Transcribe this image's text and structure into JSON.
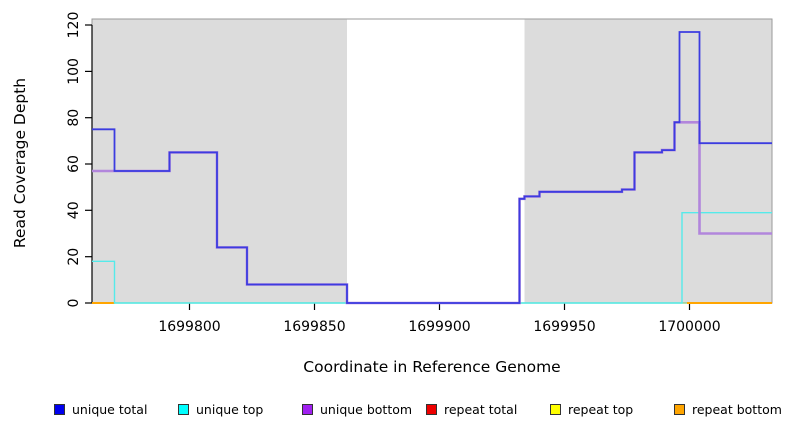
{
  "chart_data": {
    "type": "line",
    "style": "step",
    "title": "",
    "xlabel": "Coordinate in Reference Genome",
    "ylabel": "Read Coverage Depth",
    "xlim": [
      1699761,
      1700033
    ],
    "ylim": [
      0,
      122.6
    ],
    "x_ticks": [
      1699800,
      1699850,
      1699900,
      1699950,
      1700000
    ],
    "y_ticks": [
      0,
      20,
      40,
      60,
      80,
      100,
      120
    ],
    "grid": false,
    "legend_position": "bottom",
    "plot_background_color": "#DCDCDC",
    "gap_region": [
      1699863,
      1699934
    ],
    "background_regions": [
      [
        1699761,
        1699863
      ],
      [
        1699934,
        1700033
      ]
    ],
    "series": [
      {
        "name": "baseline",
        "color": "#7FCC7F",
        "width": 1.2,
        "end": 1699999,
        "points": [
          [
            1699770,
            0
          ]
        ]
      },
      {
        "name": "repeat bottom",
        "color": "#FFA500",
        "width": 2,
        "end": 1699770,
        "points": [
          [
            1699761,
            0
          ]
        ]
      },
      {
        "name": "repeat bottom",
        "color": "#FFA500",
        "width": 2,
        "end": 1700033,
        "points": [
          [
            1699999,
            0
          ]
        ]
      },
      {
        "name": "unique top",
        "color": "#55EAEA",
        "width": 1.4,
        "end": 1700033,
        "points": [
          [
            1699761,
            18
          ],
          [
            1699770,
            0
          ],
          [
            1699997,
            39
          ]
        ]
      },
      {
        "name": "unique bottom",
        "color": "#B286DC",
        "width": 2.6,
        "end": 1700033,
        "points": [
          [
            1699761,
            57
          ],
          [
            1699792,
            65
          ],
          [
            1699811,
            24
          ],
          [
            1699823,
            8
          ],
          [
            1699863,
            0
          ],
          [
            1699932,
            45
          ],
          [
            1699934,
            46
          ],
          [
            1699940,
            48
          ],
          [
            1699973,
            49
          ],
          [
            1699978,
            65
          ],
          [
            1699989,
            66
          ],
          [
            1699994,
            78
          ],
          [
            1700004,
            30
          ]
        ]
      },
      {
        "name": "unique total",
        "color": "#3C3CE0",
        "width": 1.8,
        "end": 1700033,
        "points": [
          [
            1699761,
            75
          ],
          [
            1699770,
            57
          ],
          [
            1699792,
            65
          ],
          [
            1699811,
            24
          ],
          [
            1699823,
            8
          ],
          [
            1699863,
            0
          ],
          [
            1699932,
            45
          ],
          [
            1699934,
            46
          ],
          [
            1699940,
            48
          ],
          [
            1699973,
            49
          ],
          [
            1699978,
            65
          ],
          [
            1699989,
            66
          ],
          [
            1699994,
            78
          ],
          [
            1699996,
            117
          ],
          [
            1700004,
            69
          ]
        ]
      }
    ]
  },
  "legend": {
    "items": [
      {
        "label": "unique total",
        "color": "#0000EE"
      },
      {
        "label": "unique top",
        "color": "#00FFFF"
      },
      {
        "label": "unique bottom",
        "color": "#A020F0"
      },
      {
        "label": "repeat total",
        "color": "#EE0000"
      },
      {
        "label": "repeat top",
        "color": "#FFFF00"
      },
      {
        "label": "repeat bottom",
        "color": "#FFA500"
      }
    ]
  }
}
